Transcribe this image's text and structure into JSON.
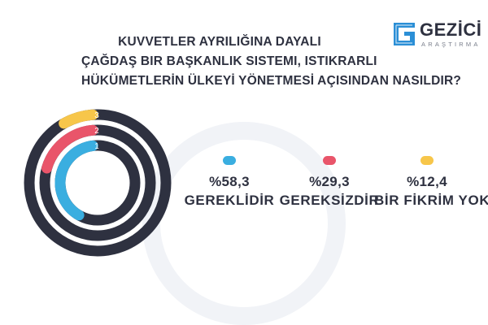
{
  "title_lines": [
    "KUVVETLER AYRILIĞINA DAYALI",
    "ÇAĞDAŞ BIR BAŞKANLIK SISTEMI, ISTIKRARLI",
    "HÜKÜMETLERİN ÜLKEYİ YÖNETMESİ AÇISINDAN NASILDIR?"
  ],
  "logo": {
    "name": "GEZİCİ",
    "sub": "ARAŞTIRMA"
  },
  "chart_data": {
    "type": "radial-bar",
    "title": "KUVVETLER AYRILIĞINA DAYALI ÇAĞDAŞ BIR BAŞKANLIK SISTEMI, ISTIKRARLI HÜKÜMETLERİN ÜLKEYİ YÖNETMESİ AÇISINDAN NASILDIR?",
    "unit": "%",
    "series": [
      {
        "ring": "1",
        "label": "GEREKLİDİR",
        "value": 58.3,
        "value_text": "%58,3",
        "color": "#3aaee0"
      },
      {
        "ring": "2",
        "label": "GEREKSİZDİR",
        "value": 29.3,
        "value_text": "%29,3",
        "color": "#e9556a"
      },
      {
        "ring": "3",
        "label": "BİR FİKRİM YOK",
        "value": 12.4,
        "value_text": "%12,4",
        "color": "#f7c64a"
      }
    ],
    "track_color": "#2e3140"
  }
}
